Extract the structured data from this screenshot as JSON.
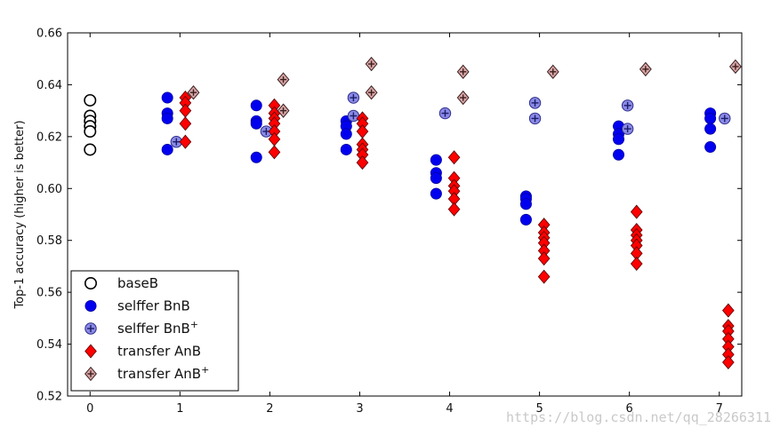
{
  "chart_data": {
    "type": "scatter",
    "title": "",
    "xlabel": "",
    "ylabel": "Top-1 accuracy (higher is better)",
    "xlim": [
      -0.25,
      7.25
    ],
    "ylim": [
      0.52,
      0.66
    ],
    "xticks": [
      "0",
      "1",
      "2",
      "3",
      "4",
      "5",
      "6",
      "7"
    ],
    "yticks": [
      "0.52",
      "0.54",
      "0.56",
      "0.58",
      "0.60",
      "0.62",
      "0.64",
      "0.66"
    ],
    "legend_position": "lower-left",
    "series": [
      {
        "name": "baseB",
        "marker": "open-circle",
        "color": "#000000",
        "fill": "#ffffff",
        "points": [
          [
            0,
            0.634
          ],
          [
            0,
            0.628
          ],
          [
            0,
            0.626
          ],
          [
            0,
            0.624
          ],
          [
            0,
            0.622
          ],
          [
            0,
            0.615
          ]
        ]
      },
      {
        "name": "selffer BnB",
        "marker": "circle",
        "color": "#0000ee",
        "points": [
          [
            0.86,
            0.635
          ],
          [
            0.86,
            0.629
          ],
          [
            0.86,
            0.627
          ],
          [
            0.86,
            0.615
          ],
          [
            1.85,
            0.632
          ],
          [
            1.85,
            0.626
          ],
          [
            1.85,
            0.625
          ],
          [
            1.85,
            0.612
          ],
          [
            2.85,
            0.626
          ],
          [
            2.85,
            0.624
          ],
          [
            2.85,
            0.621
          ],
          [
            2.85,
            0.615
          ],
          [
            3.85,
            0.611
          ],
          [
            3.85,
            0.606
          ],
          [
            3.85,
            0.604
          ],
          [
            3.85,
            0.598
          ],
          [
            4.85,
            0.597
          ],
          [
            4.85,
            0.596
          ],
          [
            4.85,
            0.594
          ],
          [
            4.85,
            0.588
          ],
          [
            5.88,
            0.624
          ],
          [
            5.88,
            0.621
          ],
          [
            5.88,
            0.619
          ],
          [
            5.88,
            0.613
          ],
          [
            6.9,
            0.629
          ],
          [
            6.9,
            0.627
          ],
          [
            6.9,
            0.623
          ],
          [
            6.9,
            0.616
          ]
        ]
      },
      {
        "name": "selffer BnB+",
        "marker": "circle-plus",
        "color": "#8a8ae6",
        "points": [
          [
            0.96,
            0.618
          ],
          [
            1.96,
            0.622
          ],
          [
            2.93,
            0.635
          ],
          [
            2.93,
            0.628
          ],
          [
            3.95,
            0.629
          ],
          [
            4.95,
            0.633
          ],
          [
            4.95,
            0.627
          ],
          [
            5.98,
            0.632
          ],
          [
            5.98,
            0.623
          ],
          [
            7.06,
            0.627
          ]
        ]
      },
      {
        "name": "transfer AnB",
        "marker": "diamond",
        "color": "#ff0000",
        "points": [
          [
            1.06,
            0.635
          ],
          [
            1.06,
            0.633
          ],
          [
            1.06,
            0.63
          ],
          [
            1.06,
            0.625
          ],
          [
            1.06,
            0.618
          ],
          [
            2.05,
            0.632
          ],
          [
            2.05,
            0.629
          ],
          [
            2.05,
            0.627
          ],
          [
            2.05,
            0.625
          ],
          [
            2.05,
            0.622
          ],
          [
            2.05,
            0.619
          ],
          [
            2.05,
            0.614
          ],
          [
            3.03,
            0.627
          ],
          [
            3.03,
            0.625
          ],
          [
            3.03,
            0.622
          ],
          [
            3.03,
            0.617
          ],
          [
            3.03,
            0.615
          ],
          [
            3.03,
            0.613
          ],
          [
            3.03,
            0.61
          ],
          [
            4.05,
            0.612
          ],
          [
            4.05,
            0.604
          ],
          [
            4.05,
            0.601
          ],
          [
            4.05,
            0.599
          ],
          [
            4.05,
            0.596
          ],
          [
            4.05,
            0.592
          ],
          [
            5.05,
            0.586
          ],
          [
            5.05,
            0.583
          ],
          [
            5.05,
            0.581
          ],
          [
            5.05,
            0.579
          ],
          [
            5.05,
            0.576
          ],
          [
            5.05,
            0.573
          ],
          [
            5.05,
            0.566
          ],
          [
            6.08,
            0.591
          ],
          [
            6.08,
            0.584
          ],
          [
            6.08,
            0.582
          ],
          [
            6.08,
            0.58
          ],
          [
            6.08,
            0.578
          ],
          [
            6.08,
            0.575
          ],
          [
            6.08,
            0.571
          ],
          [
            7.1,
            0.553
          ],
          [
            7.1,
            0.547
          ],
          [
            7.1,
            0.545
          ],
          [
            7.1,
            0.542
          ],
          [
            7.1,
            0.539
          ],
          [
            7.1,
            0.536
          ],
          [
            7.1,
            0.533
          ]
        ]
      },
      {
        "name": "transfer AnB+",
        "marker": "diamond-plus",
        "color": "#d9a5a5",
        "points": [
          [
            1.15,
            0.637
          ],
          [
            2.15,
            0.642
          ],
          [
            2.15,
            0.63
          ],
          [
            3.13,
            0.648
          ],
          [
            3.13,
            0.637
          ],
          [
            4.15,
            0.645
          ],
          [
            4.15,
            0.635
          ],
          [
            5.15,
            0.645
          ],
          [
            6.18,
            0.646
          ],
          [
            7.18,
            0.647
          ]
        ]
      }
    ]
  },
  "legend": [
    {
      "label": "baseB"
    },
    {
      "label": "selffer BnB"
    },
    {
      "label": "selffer BnB",
      "sup": "+"
    },
    {
      "label": "transfer AnB"
    },
    {
      "label": "transfer AnB",
      "sup": "+"
    }
  ],
  "watermark": "https://blog.csdn.net/qq_28266311"
}
